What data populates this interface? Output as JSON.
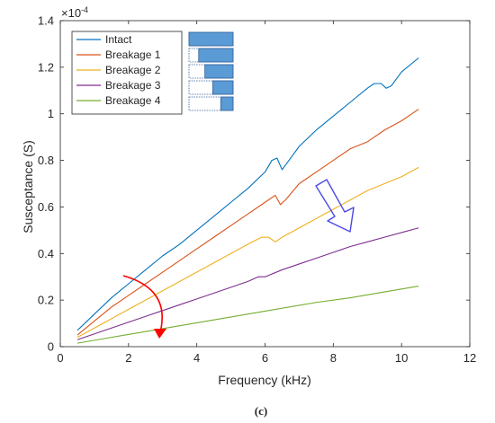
{
  "chart_data": {
    "type": "line",
    "xlabel": "Frequency (kHz)",
    "ylabel": "Susceptance (S)",
    "xlim": [
      0,
      12
    ],
    "ylim": [
      0,
      1.4
    ],
    "y_exponent_label": "×10",
    "y_exponent_value": "-4",
    "xticks": [
      "0",
      "2",
      "4",
      "6",
      "8",
      "10",
      "12"
    ],
    "yticks": [
      "0",
      "0.2",
      "0.4",
      "0.6",
      "0.8",
      "1",
      "1.2",
      "1.4"
    ],
    "legend_position": "top-left",
    "caption": "(c)",
    "series": [
      {
        "name": "Intact",
        "color": "#0072BD",
        "x": [
          0.5,
          1.0,
          1.5,
          2.0,
          2.5,
          3.0,
          3.5,
          4.0,
          4.5,
          5.0,
          5.5,
          6.0,
          6.2,
          6.35,
          6.5,
          6.8,
          7.0,
          7.5,
          8.0,
          8.5,
          9.0,
          9.2,
          9.4,
          9.55,
          9.7,
          10.0,
          10.5
        ],
        "y": [
          0.07,
          0.14,
          0.21,
          0.27,
          0.33,
          0.39,
          0.44,
          0.5,
          0.56,
          0.62,
          0.68,
          0.75,
          0.8,
          0.81,
          0.76,
          0.82,
          0.86,
          0.93,
          0.99,
          1.05,
          1.11,
          1.13,
          1.13,
          1.11,
          1.12,
          1.18,
          1.24
        ]
      },
      {
        "name": "Breakage 1",
        "color": "#D95319",
        "x": [
          0.5,
          1.0,
          1.5,
          2.0,
          2.5,
          3.0,
          3.5,
          4.0,
          4.5,
          5.0,
          5.5,
          6.0,
          6.3,
          6.45,
          6.6,
          7.0,
          7.5,
          8.0,
          8.5,
          9.0,
          9.5,
          10.0,
          10.5
        ],
        "y": [
          0.05,
          0.11,
          0.17,
          0.22,
          0.27,
          0.32,
          0.37,
          0.42,
          0.47,
          0.52,
          0.57,
          0.62,
          0.65,
          0.61,
          0.63,
          0.7,
          0.75,
          0.8,
          0.85,
          0.88,
          0.93,
          0.97,
          1.02
        ]
      },
      {
        "name": "Breakage 2",
        "color": "#EDB120",
        "x": [
          0.5,
          1.0,
          1.5,
          2.0,
          2.5,
          3.0,
          3.5,
          4.0,
          4.5,
          5.0,
          5.5,
          5.9,
          6.1,
          6.3,
          6.5,
          7.0,
          7.5,
          8.0,
          8.5,
          9.0,
          9.5,
          10.0,
          10.5
        ],
        "y": [
          0.04,
          0.08,
          0.12,
          0.16,
          0.2,
          0.24,
          0.28,
          0.32,
          0.36,
          0.4,
          0.44,
          0.47,
          0.47,
          0.45,
          0.47,
          0.51,
          0.55,
          0.59,
          0.63,
          0.67,
          0.7,
          0.73,
          0.77
        ]
      },
      {
        "name": "Breakage 3",
        "color": "#7E2F8E",
        "x": [
          0.5,
          1.0,
          1.5,
          2.0,
          2.5,
          3.0,
          3.5,
          4.0,
          4.5,
          5.0,
          5.5,
          5.8,
          6.0,
          6.5,
          7.0,
          7.5,
          8.0,
          8.5,
          9.0,
          9.5,
          10.0,
          10.5
        ],
        "y": [
          0.03,
          0.055,
          0.08,
          0.105,
          0.13,
          0.155,
          0.18,
          0.205,
          0.23,
          0.255,
          0.28,
          0.3,
          0.3,
          0.33,
          0.355,
          0.38,
          0.405,
          0.43,
          0.45,
          0.47,
          0.49,
          0.51
        ]
      },
      {
        "name": "Breakage 4",
        "color": "#77AC30",
        "x": [
          0.5,
          1.5,
          2.5,
          3.5,
          4.5,
          5.5,
          6.5,
          7.5,
          8.5,
          9.5,
          10.5
        ],
        "y": [
          0.015,
          0.04,
          0.065,
          0.09,
          0.115,
          0.14,
          0.165,
          0.19,
          0.21,
          0.235,
          0.26
        ]
      }
    ],
    "legend_bars": [
      {
        "intact_fraction": 1.0
      },
      {
        "intact_fraction": 0.78
      },
      {
        "intact_fraction": 0.64
      },
      {
        "intact_fraction": 0.46
      },
      {
        "intact_fraction": 0.28
      }
    ],
    "annotations": [
      {
        "kind": "curved-arrow",
        "color": "#FF0000"
      },
      {
        "kind": "block-arrow",
        "color": "#4A4AE8"
      }
    ]
  }
}
